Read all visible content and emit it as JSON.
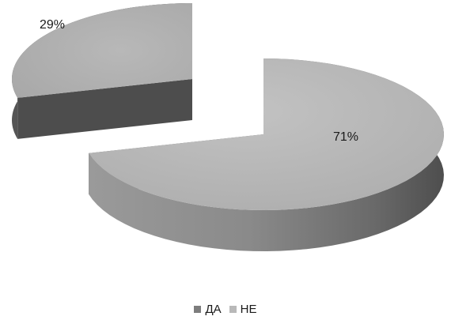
{
  "chart_data": {
    "type": "pie",
    "style": "3d-exploded",
    "categories": [
      "ДА",
      "НЕ"
    ],
    "values": [
      29,
      71
    ],
    "data_labels": [
      "29%",
      "71%"
    ],
    "colors": {
      "ДА": "#7d7d7d",
      "НЕ": "#b9b9b9",
      "side_dark": "#555555",
      "side_light": "#8f8f8f"
    },
    "legend_position": "bottom-center"
  },
  "legend": {
    "items": [
      {
        "label": "ДА",
        "color": "#7d7d7d"
      },
      {
        "label": "НЕ",
        "color": "#b9b9b9"
      }
    ]
  }
}
